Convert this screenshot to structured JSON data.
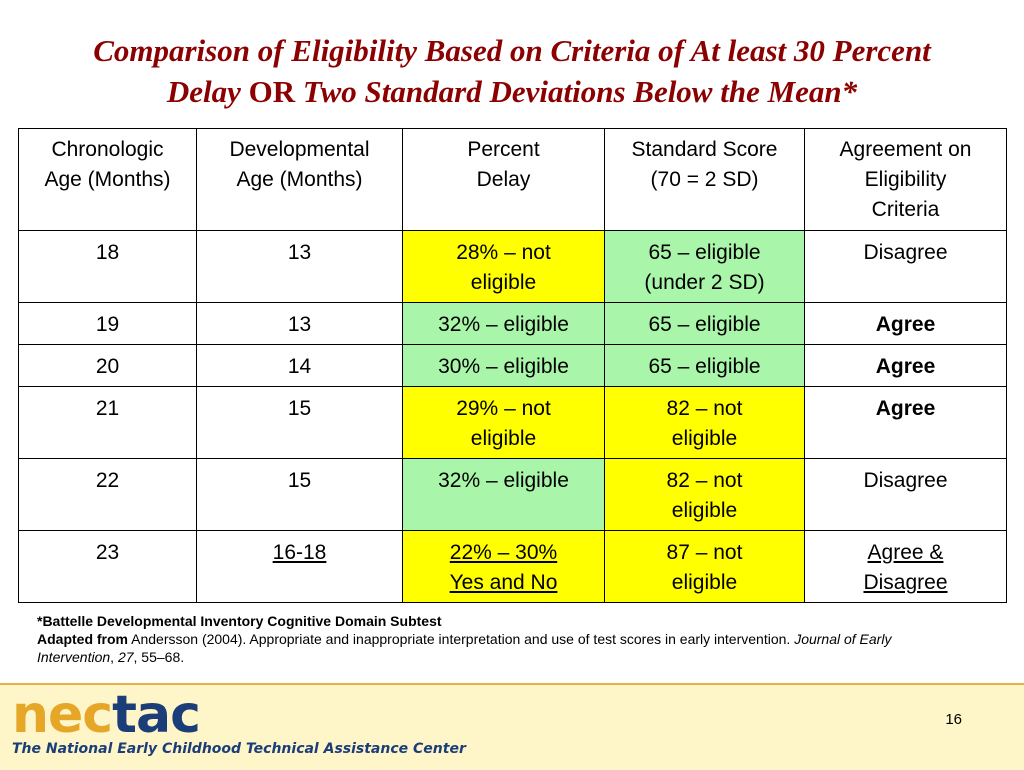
{
  "title": {
    "line1": "Comparison of Eligibility Based on Criteria of At least 30 Percent",
    "line2_part1": "Delay ",
    "line2_or": "OR",
    "line2_part2": " Two Standard Deviations Below the Mean*"
  },
  "table": {
    "headers": [
      [
        "Chronologic",
        "Age (Months)"
      ],
      [
        "Developmental",
        "Age (Months)"
      ],
      [
        "Percent",
        "Delay"
      ],
      [
        "Standard Score",
        "(70 = 2 SD)"
      ],
      [
        "Agreement on",
        "Eligibility",
        "Criteria"
      ]
    ],
    "rows": [
      [
        "18",
        "13",
        [
          "28% – not",
          "eligible"
        ],
        [
          "65 – eligible",
          "(under 2 SD)"
        ],
        [
          "Disagree"
        ]
      ],
      [
        "19",
        "13",
        [
          "32% – eligible"
        ],
        [
          "65 – eligible"
        ],
        [
          "Agree"
        ]
      ],
      [
        "20",
        "14",
        [
          "30% – eligible"
        ],
        [
          "65 – eligible"
        ],
        [
          "Agree"
        ]
      ],
      [
        "21",
        "15",
        [
          "29% – not",
          "eligible"
        ],
        [
          "82 – not",
          "eligible"
        ],
        [
          "Agree"
        ]
      ],
      [
        "22",
        "15",
        [
          "32% – eligible"
        ],
        [
          "82 – not",
          "eligible"
        ],
        [
          "Disagree"
        ]
      ],
      [
        "23",
        "16-18",
        [
          "22% – 30%",
          "Yes and No"
        ],
        [
          "87 – not",
          "eligible"
        ],
        [
          "Agree &",
          "Disagree"
        ]
      ]
    ]
  },
  "colors": {
    "title": "#8b0000",
    "not_eligible": "#ffff00",
    "eligible": "#a9f5a9",
    "logo_nec": "#e6a627",
    "logo_tac": "#1b3e79",
    "band": "#fef5c8"
  },
  "footnote": {
    "line1": "*Battelle Developmental Inventory Cognitive Domain Subtest",
    "adapted_label": "Adapted from",
    "adapted_text": " Andersson (2004). Appropriate and inappropriate interpretation and use of test scores in early intervention. ",
    "journal": "Journal of Early Intervention",
    "sep": ", ",
    "volume": "27",
    "pages": ", 55–68."
  },
  "footer": {
    "logo_part1": "nec",
    "logo_part2": "tac",
    "org_name": "The National Early Childhood Technical Assistance Center",
    "page_number": "16"
  }
}
